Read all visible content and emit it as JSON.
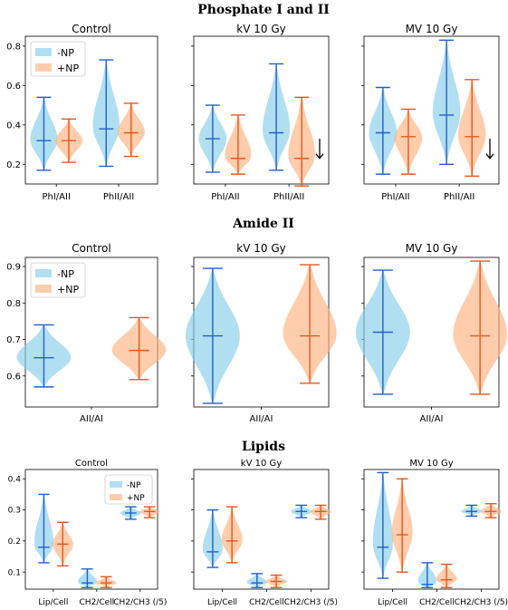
{
  "section_titles": [
    "Phosphate I and II",
    "Amide II",
    "Lipids"
  ],
  "legend_labels": [
    "-NP",
    "+NP"
  ],
  "colors": {
    "np_minus_fill": "#87ceeb",
    "np_minus_line": "#1f5fcf",
    "np_plus_fill": "#ffb27f",
    "np_plus_line": "#e8561a",
    "legend_frame": "#cccccc"
  },
  "chart_data": [
    {
      "type": "violin",
      "title": "Control",
      "section": "Phosphate I and II",
      "categories": [
        "PhI/AII",
        "PhII/AII"
      ],
      "ylim": [
        0.1,
        0.85
      ],
      "yticks": [
        "0.2",
        "0.4",
        "0.6",
        "0.8"
      ],
      "legend": "top-left",
      "series": [
        {
          "name": "-NP",
          "violins": [
            {
              "min": 0.17,
              "median": 0.32,
              "max": 0.54
            },
            {
              "min": 0.19,
              "median": 0.38,
              "max": 0.73
            }
          ]
        },
        {
          "name": "+NP",
          "violins": [
            {
              "min": 0.21,
              "median": 0.32,
              "max": 0.43
            },
            {
              "min": 0.24,
              "median": 0.36,
              "max": 0.51
            }
          ]
        }
      ]
    },
    {
      "type": "violin",
      "title": "kV 10 Gy",
      "section": "Phosphate I and II",
      "categories": [
        "PhI/AII",
        "PhII/AII"
      ],
      "ylim": [
        0.1,
        0.85
      ],
      "yticks": [],
      "arrow": "down",
      "series": [
        {
          "name": "-NP",
          "violins": [
            {
              "min": 0.16,
              "median": 0.33,
              "max": 0.5
            },
            {
              "min": 0.17,
              "median": 0.36,
              "max": 0.71
            }
          ]
        },
        {
          "name": "+NP",
          "violins": [
            {
              "min": 0.15,
              "median": 0.23,
              "max": 0.45
            },
            {
              "min": 0.09,
              "median": 0.23,
              "max": 0.54
            }
          ]
        }
      ]
    },
    {
      "type": "violin",
      "title": "MV 10 Gy",
      "section": "Phosphate I and II",
      "categories": [
        "PhI/AII",
        "PhII/AII"
      ],
      "ylim": [
        0.1,
        0.85
      ],
      "yticks": [],
      "arrow": "down",
      "series": [
        {
          "name": "-NP",
          "violins": [
            {
              "min": 0.15,
              "median": 0.36,
              "max": 0.59
            },
            {
              "min": 0.2,
              "median": 0.45,
              "max": 0.83
            }
          ]
        },
        {
          "name": "+NP",
          "violins": [
            {
              "min": 0.15,
              "median": 0.34,
              "max": 0.48
            },
            {
              "min": 0.14,
              "median": 0.34,
              "max": 0.63
            }
          ]
        }
      ]
    },
    {
      "type": "violin",
      "title": "Control",
      "section": "Amide II",
      "categories": [
        "AII/AI"
      ],
      "ylim": [
        0.515,
        0.925
      ],
      "yticks": [
        "0.6",
        "0.7",
        "0.8",
        "0.9"
      ],
      "legend": "top-left",
      "series": [
        {
          "name": "-NP",
          "violins": [
            {
              "min": 0.57,
              "median": 0.65,
              "max": 0.74
            }
          ]
        },
        {
          "name": "+NP",
          "violins": [
            {
              "min": 0.59,
              "median": 0.67,
              "max": 0.76
            }
          ]
        }
      ]
    },
    {
      "type": "violin",
      "title": "kV 10 Gy",
      "section": "Amide II",
      "categories": [
        "AII/AI"
      ],
      "ylim": [
        0.515,
        0.925
      ],
      "yticks": [],
      "series": [
        {
          "name": "-NP",
          "violins": [
            {
              "min": 0.525,
              "median": 0.71,
              "max": 0.895
            }
          ]
        },
        {
          "name": "+NP",
          "violins": [
            {
              "min": 0.58,
              "median": 0.71,
              "max": 0.905
            }
          ]
        }
      ]
    },
    {
      "type": "violin",
      "title": "MV 10 Gy",
      "section": "Amide II",
      "categories": [
        "AII/AI"
      ],
      "ylim": [
        0.515,
        0.925
      ],
      "yticks": [],
      "series": [
        {
          "name": "-NP",
          "violins": [
            {
              "min": 0.55,
              "median": 0.72,
              "max": 0.89
            }
          ]
        },
        {
          "name": "+NP",
          "violins": [
            {
              "min": 0.55,
              "median": 0.71,
              "max": 0.915
            }
          ]
        }
      ]
    },
    {
      "type": "violin",
      "title": "Control",
      "section": "Lipids",
      "categories": [
        "Lip/Cell",
        "CH2/Cell",
        "CH2/CH3 (/5)"
      ],
      "ylim": [
        0.045,
        0.43
      ],
      "yticks": [
        "0.1",
        "0.2",
        "0.3",
        "0.4"
      ],
      "legend": "top-right",
      "series": [
        {
          "name": "-NP",
          "violins": [
            {
              "min": 0.13,
              "median": 0.18,
              "max": 0.35
            },
            {
              "min": 0.05,
              "median": 0.065,
              "max": 0.11
            },
            {
              "min": 0.27,
              "median": 0.29,
              "max": 0.31
            }
          ]
        },
        {
          "name": "+NP",
          "violins": [
            {
              "min": 0.12,
              "median": 0.19,
              "max": 0.26
            },
            {
              "min": 0.05,
              "median": 0.065,
              "max": 0.085
            },
            {
              "min": 0.275,
              "median": 0.295,
              "max": 0.31
            }
          ]
        }
      ]
    },
    {
      "type": "violin",
      "title": "kV 10 Gy",
      "section": "Lipids",
      "categories": [
        "Lip/Cell",
        "CH2/Cell",
        "CH2/CH3 (/5)"
      ],
      "ylim": [
        0.045,
        0.43
      ],
      "yticks": [],
      "series": [
        {
          "name": "-NP",
          "violins": [
            {
              "min": 0.115,
              "median": 0.165,
              "max": 0.3
            },
            {
              "min": 0.05,
              "median": 0.065,
              "max": 0.095
            },
            {
              "min": 0.275,
              "median": 0.295,
              "max": 0.315
            }
          ]
        },
        {
          "name": "+NP",
          "violins": [
            {
              "min": 0.13,
              "median": 0.2,
              "max": 0.31
            },
            {
              "min": 0.05,
              "median": 0.07,
              "max": 0.09
            },
            {
              "min": 0.27,
              "median": 0.295,
              "max": 0.315
            }
          ]
        }
      ]
    },
    {
      "type": "violin",
      "title": "MV 10 Gy",
      "section": "Lipids",
      "categories": [
        "Lip/Cell",
        "CH2/Cell",
        "CH2/CH3 (/5)"
      ],
      "ylim": [
        0.045,
        0.43
      ],
      "yticks": [],
      "series": [
        {
          "name": "-NP",
          "violins": [
            {
              "min": 0.08,
              "median": 0.18,
              "max": 0.42
            },
            {
              "min": 0.05,
              "median": 0.06,
              "max": 0.13
            },
            {
              "min": 0.28,
              "median": 0.295,
              "max": 0.315
            }
          ]
        },
        {
          "name": "+NP",
          "violins": [
            {
              "min": 0.1,
              "median": 0.22,
              "max": 0.4
            },
            {
              "min": 0.05,
              "median": 0.075,
              "max": 0.125
            },
            {
              "min": 0.275,
              "median": 0.295,
              "max": 0.32
            }
          ]
        }
      ]
    }
  ]
}
